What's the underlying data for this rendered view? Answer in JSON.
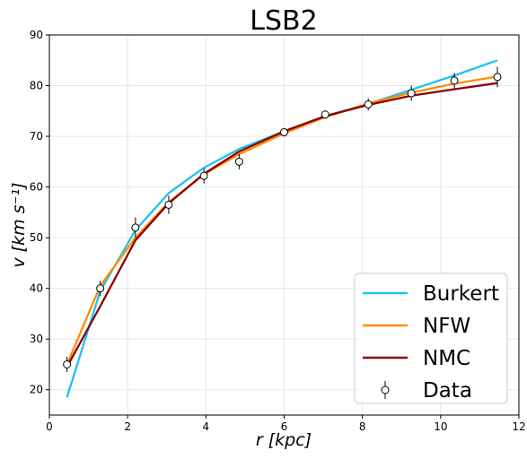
{
  "chart_data": {
    "type": "line",
    "title": "LSB2",
    "xlabel": "r [kpc]",
    "ylabel": "v [km s⁻¹]",
    "xlim": [
      0,
      12
    ],
    "ylim": [
      15,
      90
    ],
    "xticks": [
      0,
      2,
      4,
      6,
      8,
      10,
      12
    ],
    "yticks": [
      20,
      30,
      40,
      50,
      60,
      70,
      80,
      90
    ],
    "grid": true,
    "legend_position": "bottom-right",
    "series": [
      {
        "name": "Burkert",
        "color": "#1ec2f2",
        "x": [
          0.45,
          1.3,
          2.2,
          3.05,
          3.95,
          4.85,
          6.0,
          7.05,
          8.15,
          9.25,
          10.35,
          11.45
        ],
        "y": [
          18.5,
          39.5,
          51.5,
          58.8,
          63.8,
          67.5,
          71.0,
          74.0,
          76.4,
          79.2,
          82.0,
          85.0
        ]
      },
      {
        "name": "NFW",
        "color": "#ff8c00",
        "x": [
          0.45,
          1.3,
          2.2,
          3.05,
          3.95,
          4.85,
          6.0,
          7.05,
          8.15,
          9.25,
          10.35,
          11.45
        ],
        "y": [
          25.0,
          40.5,
          50.0,
          57.0,
          62.5,
          66.5,
          70.6,
          73.8,
          76.5,
          78.6,
          80.4,
          81.8
        ]
      },
      {
        "name": "NMC",
        "color": "#8b0000",
        "x": [
          0.45,
          1.3,
          2.2,
          3.05,
          3.95,
          4.85,
          6.0,
          7.05,
          8.15,
          9.25,
          10.35,
          11.45
        ],
        "y": [
          24.5,
          36.5,
          49.5,
          56.8,
          62.6,
          67.0,
          71.0,
          74.0,
          76.2,
          78.0,
          79.3,
          80.5
        ]
      }
    ],
    "data_points": {
      "name": "Data",
      "x": [
        0.45,
        1.3,
        2.2,
        3.05,
        3.95,
        4.85,
        6.0,
        7.05,
        8.15,
        9.25,
        10.35,
        11.45
      ],
      "y": [
        25.0,
        40.0,
        52.0,
        56.5,
        62.2,
        65.0,
        70.8,
        74.3,
        76.3,
        78.5,
        81.0,
        81.7
      ],
      "err": [
        1.5,
        1.5,
        2.0,
        1.8,
        1.5,
        1.5,
        0.8,
        0.8,
        1.2,
        1.5,
        1.5,
        2.0
      ]
    }
  }
}
